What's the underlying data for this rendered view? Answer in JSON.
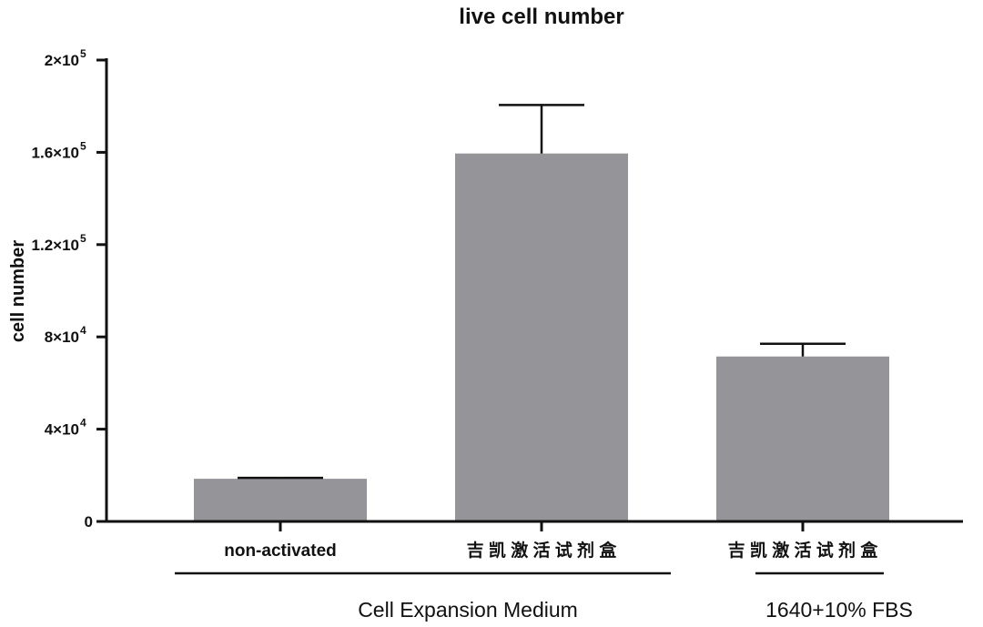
{
  "chart_data": {
    "type": "bar",
    "title": "live cell number",
    "ylabel": "cell number",
    "xlabel": "",
    "ylim": [
      0,
      200000
    ],
    "yticks": [
      {
        "value": 0,
        "label": "0"
      },
      {
        "value": 40000,
        "label": "4×10",
        "exp": "4"
      },
      {
        "value": 80000,
        "label": "8×10",
        "exp": "4"
      },
      {
        "value": 120000,
        "label": "1.2×10",
        "exp": "5"
      },
      {
        "value": 160000,
        "label": "1.6×10",
        "exp": "5"
      },
      {
        "value": 200000,
        "label": "2×10",
        "exp": "5"
      }
    ],
    "categories": [
      "non-activated",
      "吉 凯 激 活 试 剂 盒",
      "吉 凯 激 活 试 剂 盒"
    ],
    "values": [
      18500,
      159500,
      71500
    ],
    "errors": [
      400,
      21000,
      5500
    ],
    "bar_color": "#959599",
    "groups": [
      {
        "label": "Cell Expansion Medium",
        "categories": [
          0,
          1
        ]
      },
      {
        "label": "1640+10% FBS",
        "categories": [
          2
        ]
      }
    ],
    "grid": false,
    "legend": "none"
  }
}
